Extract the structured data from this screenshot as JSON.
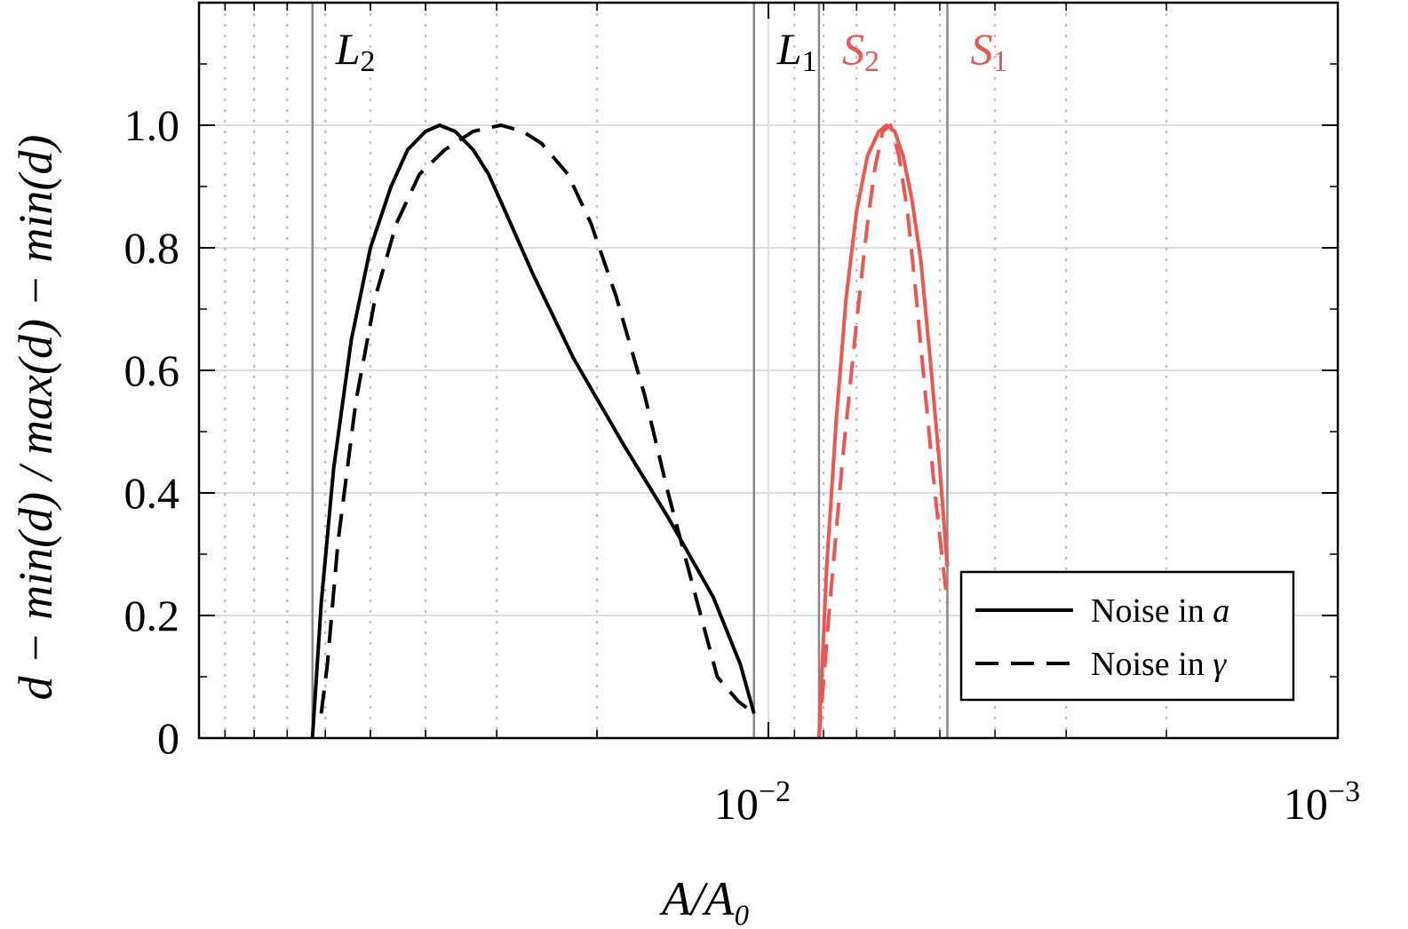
{
  "chart_data": {
    "type": "line",
    "xlabel": "A/A₀",
    "ylabel": "d − min(d) / max(d) − min(d)",
    "x_scale": "log-reversed",
    "xlim": [
      0.1,
      0.001
    ],
    "ylim": [
      0,
      1.2
    ],
    "grid": true,
    "legend_position": "bottom-right",
    "colors": {
      "main": "#000000",
      "accent": "#f05454",
      "grid": "#dddddd",
      "vline": "#888888"
    },
    "x_tick_labels": [
      {
        "value": 0.01,
        "base": "10",
        "exp": "−2"
      },
      {
        "value": 0.001,
        "base": "10",
        "exp": "−3"
      }
    ],
    "y_ticks": [
      {
        "value": 0,
        "label": "0"
      },
      {
        "value": 0.2,
        "label": "0.2"
      },
      {
        "value": 0.4,
        "label": "0.4"
      },
      {
        "value": 0.6,
        "label": "0.6"
      },
      {
        "value": 0.8,
        "label": "0.8"
      },
      {
        "value": 1.0,
        "label": "1.0"
      }
    ],
    "vlines": [
      {
        "x": 0.0632,
        "letter": "L",
        "sub": "2",
        "color": "#000000"
      },
      {
        "x": 0.0106,
        "letter": "L",
        "sub": "1",
        "color": "#000000"
      },
      {
        "x": 0.00815,
        "letter": "S",
        "sub": "2",
        "color": "#f05454"
      },
      {
        "x": 0.00485,
        "letter": "S",
        "sub": "1",
        "color": "#f05454"
      }
    ],
    "series": [
      {
        "name": "Noise in a",
        "color": "#000000",
        "dash": "solid",
        "x": [
          0.0632,
          0.061,
          0.058,
          0.054,
          0.05,
          0.046,
          0.043,
          0.04,
          0.0378,
          0.0355,
          0.033,
          0.031,
          0.029,
          0.026,
          0.022,
          0.018,
          0.015,
          0.0125,
          0.0112,
          0.0106
        ],
        "y": [
          0.0,
          0.22,
          0.44,
          0.65,
          0.8,
          0.9,
          0.96,
          0.99,
          1.0,
          0.99,
          0.96,
          0.92,
          0.86,
          0.76,
          0.62,
          0.48,
          0.36,
          0.23,
          0.12,
          0.04
        ]
      },
      {
        "name": "Noise in γ",
        "color": "#000000",
        "dash": "dashed",
        "x": [
          0.061,
          0.0595,
          0.057,
          0.053,
          0.049,
          0.045,
          0.041,
          0.037,
          0.033,
          0.0295,
          0.027,
          0.025,
          0.0225,
          0.0205,
          0.0185,
          0.0165,
          0.015,
          0.0135,
          0.0123,
          0.0113,
          0.0106
        ],
        "y": [
          0.04,
          0.12,
          0.32,
          0.55,
          0.72,
          0.84,
          0.92,
          0.96,
          0.99,
          1.0,
          0.99,
          0.97,
          0.92,
          0.84,
          0.72,
          0.56,
          0.4,
          0.24,
          0.1,
          0.06,
          0.04
        ]
      },
      {
        "name": "",
        "color": "#f05454",
        "dash": "solid",
        "x": [
          0.00815,
          0.0079,
          0.0076,
          0.0073,
          0.007,
          0.0067,
          0.0064,
          0.0062,
          0.006,
          0.0058,
          0.0056,
          0.0054,
          0.0052,
          0.005,
          0.00485
        ],
        "y": [
          0.0,
          0.28,
          0.52,
          0.72,
          0.86,
          0.95,
          0.99,
          1.0,
          0.99,
          0.95,
          0.88,
          0.78,
          0.62,
          0.44,
          0.28
        ]
      },
      {
        "name": "",
        "color": "#f05454",
        "dash": "dashed",
        "x": [
          0.00815,
          0.0078,
          0.0074,
          0.007,
          0.0067,
          0.0065,
          0.0063,
          0.0061,
          0.0059,
          0.0057,
          0.0055,
          0.0053,
          0.0051,
          0.00485
        ],
        "y": [
          0.0,
          0.22,
          0.46,
          0.68,
          0.84,
          0.93,
          0.99,
          1.0,
          0.95,
          0.86,
          0.72,
          0.56,
          0.4,
          0.22
        ]
      }
    ],
    "legend": [
      {
        "label": "Noise in ",
        "var": "a",
        "dash": "solid"
      },
      {
        "label": "Noise in ",
        "var": "γ",
        "dash": "dashed"
      }
    ]
  }
}
